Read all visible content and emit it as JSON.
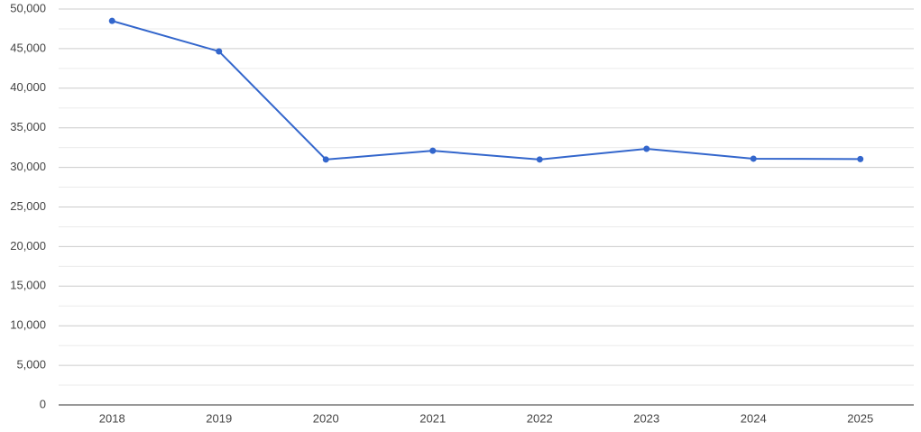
{
  "chart_data": {
    "type": "line",
    "categories": [
      "2018",
      "2019",
      "2020",
      "2021",
      "2022",
      "2023",
      "2024",
      "2025"
    ],
    "series": [
      {
        "color": "#3366cc",
        "values": [
          48500,
          44650,
          31000,
          32100,
          31000,
          32350,
          31100,
          31050
        ]
      }
    ],
    "ylim": [
      0,
      50000
    ],
    "yticks": [
      0,
      {
        "value": 5000,
        "label": "5,000"
      },
      {
        "value": 10000,
        "label": "10,000"
      },
      {
        "value": 15000,
        "label": "15,000"
      },
      {
        "value": 20000,
        "label": "20,000"
      },
      {
        "value": 25000,
        "label": "25,000"
      },
      {
        "value": 30000,
        "label": "30,000"
      },
      {
        "value": 35000,
        "label": "35,000"
      },
      {
        "value": 40000,
        "label": "40,000"
      },
      {
        "value": 45000,
        "label": "45,000"
      },
      {
        "value": 50000,
        "label": "50,000"
      }
    ],
    "minor_yticks": [
      2500,
      7500,
      12500,
      17500,
      22500,
      27500,
      32500,
      37500,
      42500,
      47500
    ],
    "grid": true
  }
}
